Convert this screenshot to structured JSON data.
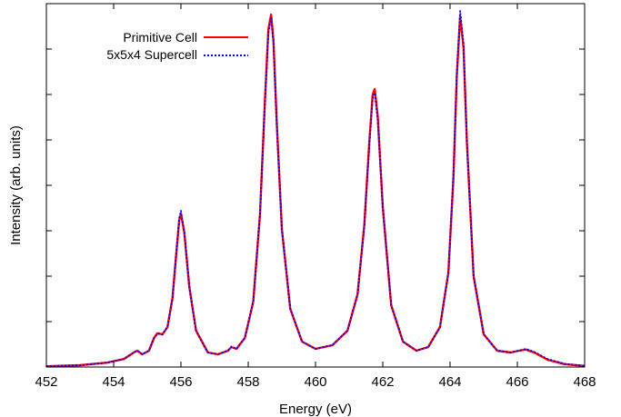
{
  "chart_data": {
    "type": "line",
    "title": "",
    "xlabel": "Energy (eV)",
    "ylabel": "Intensity (arb. units)",
    "xlim": [
      452,
      468
    ],
    "ylim": [
      0,
      1.0
    ],
    "x_ticks": [
      "452",
      "454",
      "456",
      "458",
      "460",
      "462",
      "464",
      "466",
      "468"
    ],
    "y_tick_labels_shown": false,
    "grid": false,
    "legend_position": "top-left",
    "series": [
      {
        "name": "Primitive Cell",
        "color": "#ff0000",
        "style": "solid",
        "x": [
          452.0,
          453.0,
          453.8,
          454.3,
          454.6,
          454.7,
          454.85,
          455.05,
          455.2,
          455.3,
          455.45,
          455.6,
          455.75,
          455.85,
          455.95,
          456.0,
          456.1,
          456.25,
          456.45,
          456.8,
          457.1,
          457.4,
          457.5,
          457.65,
          457.9,
          458.15,
          458.35,
          458.5,
          458.6,
          458.68,
          458.75,
          458.85,
          459.0,
          459.25,
          459.6,
          460.0,
          460.5,
          460.95,
          461.25,
          461.45,
          461.6,
          461.7,
          461.76,
          461.85,
          462.0,
          462.25,
          462.6,
          463.0,
          463.35,
          463.7,
          463.95,
          464.1,
          464.2,
          464.3,
          464.4,
          464.5,
          464.7,
          465.0,
          465.4,
          465.8,
          466.05,
          466.25,
          466.5,
          466.9,
          467.4,
          468.0
        ],
        "y": [
          0.002,
          0.005,
          0.012,
          0.022,
          0.04,
          0.045,
          0.035,
          0.045,
          0.08,
          0.093,
          0.09,
          0.11,
          0.19,
          0.3,
          0.405,
          0.422,
          0.37,
          0.22,
          0.1,
          0.04,
          0.035,
          0.045,
          0.055,
          0.05,
          0.08,
          0.18,
          0.42,
          0.74,
          0.93,
          0.97,
          0.9,
          0.67,
          0.38,
          0.16,
          0.07,
          0.05,
          0.06,
          0.1,
          0.2,
          0.39,
          0.62,
          0.75,
          0.765,
          0.69,
          0.44,
          0.17,
          0.07,
          0.045,
          0.055,
          0.11,
          0.26,
          0.52,
          0.8,
          0.965,
          0.88,
          0.62,
          0.25,
          0.09,
          0.045,
          0.04,
          0.045,
          0.048,
          0.04,
          0.02,
          0.008,
          0.003
        ]
      },
      {
        "name": "5x5x4 Supercell",
        "color": "#0000ff",
        "style": "dotted",
        "x": [
          452.0,
          453.0,
          453.8,
          454.3,
          454.6,
          454.7,
          454.85,
          455.05,
          455.2,
          455.3,
          455.45,
          455.6,
          455.75,
          455.85,
          455.95,
          456.0,
          456.1,
          456.25,
          456.45,
          456.8,
          457.1,
          457.4,
          457.5,
          457.65,
          457.9,
          458.15,
          458.35,
          458.5,
          458.6,
          458.68,
          458.75,
          458.85,
          459.0,
          459.25,
          459.6,
          460.0,
          460.5,
          460.95,
          461.25,
          461.45,
          461.6,
          461.7,
          461.76,
          461.85,
          462.0,
          462.25,
          462.6,
          463.0,
          463.35,
          463.7,
          463.95,
          464.1,
          464.2,
          464.3,
          464.4,
          464.5,
          464.7,
          465.0,
          465.4,
          465.8,
          466.05,
          466.25,
          466.5,
          466.9,
          467.4,
          468.0
        ],
        "y": [
          0.002,
          0.005,
          0.012,
          0.022,
          0.04,
          0.045,
          0.035,
          0.045,
          0.08,
          0.092,
          0.089,
          0.11,
          0.19,
          0.3,
          0.41,
          0.43,
          0.372,
          0.22,
          0.1,
          0.04,
          0.035,
          0.045,
          0.056,
          0.05,
          0.08,
          0.18,
          0.42,
          0.73,
          0.92,
          0.96,
          0.89,
          0.66,
          0.38,
          0.16,
          0.07,
          0.05,
          0.06,
          0.1,
          0.2,
          0.385,
          0.61,
          0.74,
          0.755,
          0.68,
          0.44,
          0.17,
          0.07,
          0.045,
          0.055,
          0.11,
          0.26,
          0.53,
          0.81,
          0.98,
          0.89,
          0.62,
          0.25,
          0.09,
          0.045,
          0.04,
          0.045,
          0.05,
          0.042,
          0.022,
          0.009,
          0.003
        ]
      }
    ]
  }
}
